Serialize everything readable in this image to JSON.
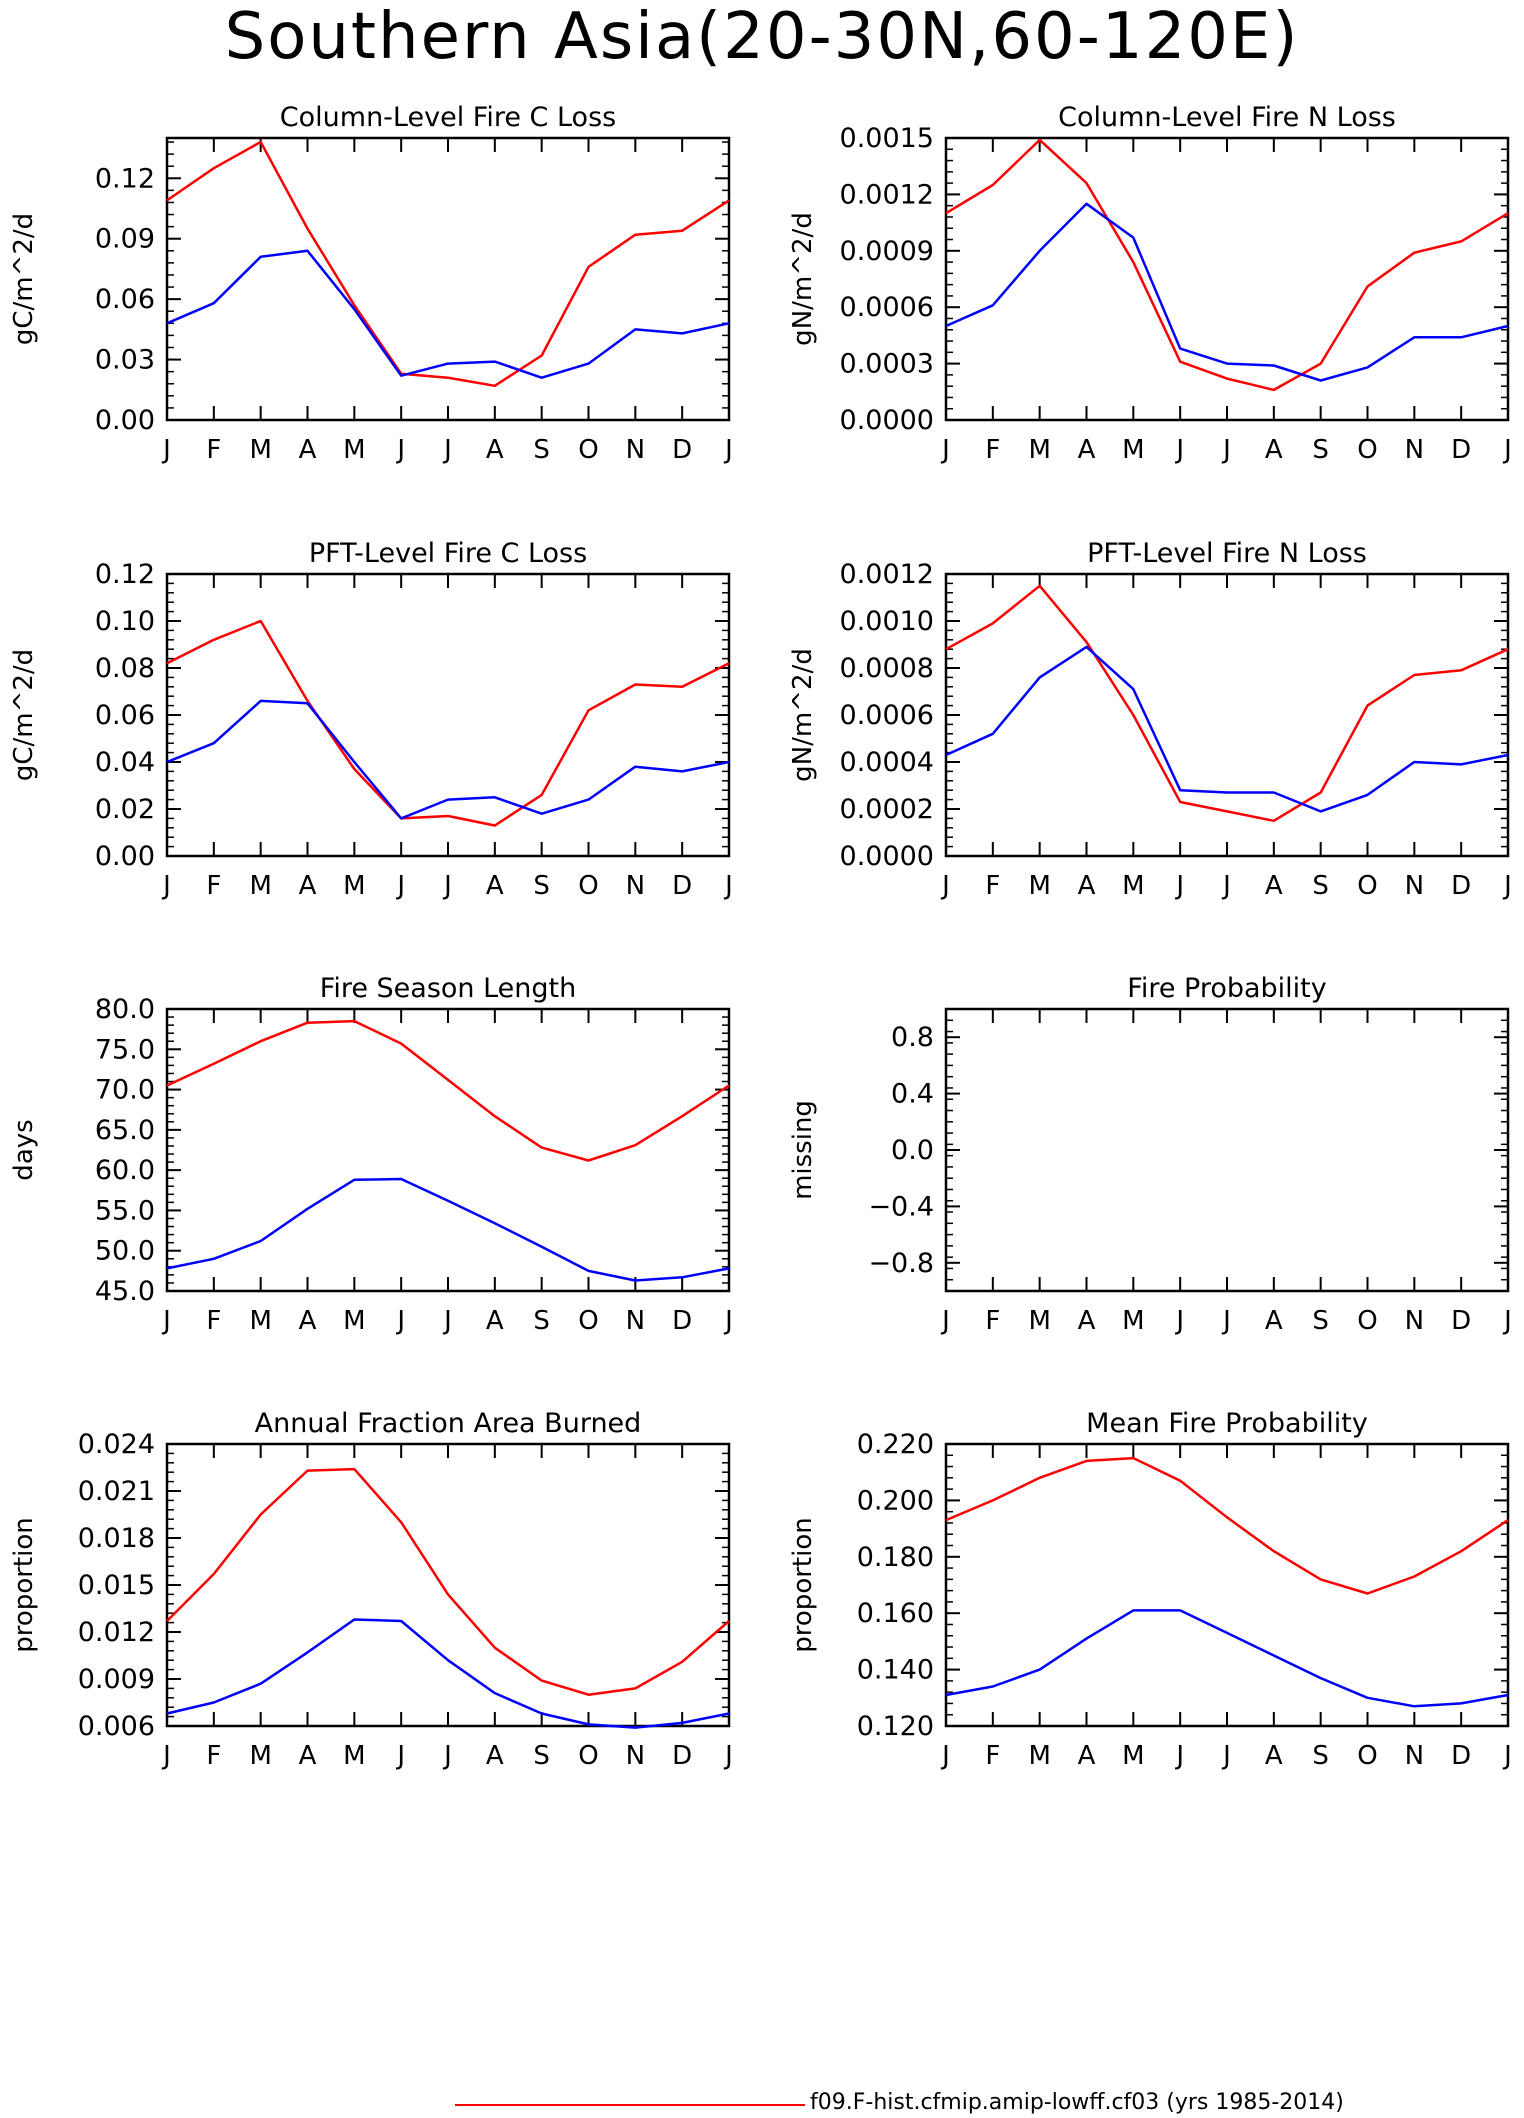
{
  "page_title": "Southern Asia(20-30N,60-120E)",
  "legend": {
    "label": "f09.F-hist.cfmip.amip-lowff.cf03 (yrs 1985-2014)",
    "color": "#ff0000"
  },
  "colors": {
    "series_red": "#ff0000",
    "series_blue": "#0000ff"
  },
  "chart_data": [
    {
      "type": "line",
      "title": "Column-Level Fire C Loss",
      "ylabel": "gC/m^2/d",
      "categories": [
        "J",
        "F",
        "M",
        "A",
        "M",
        "J",
        "J",
        "A",
        "S",
        "O",
        "N",
        "D",
        "J"
      ],
      "ylim": [
        0,
        0.14
      ],
      "yticks": [
        "0.00",
        "0.03",
        "0.06",
        "0.09",
        "0.12"
      ],
      "series": [
        {
          "color": "#ff0000",
          "values": [
            0.109,
            0.125,
            0.138,
            0.095,
            0.057,
            0.023,
            0.021,
            0.017,
            0.032,
            0.076,
            0.092,
            0.094,
            0.109
          ]
        },
        {
          "color": "#0000ff",
          "values": [
            0.048,
            0.058,
            0.081,
            0.084,
            0.055,
            0.022,
            0.028,
            0.029,
            0.021,
            0.028,
            0.045,
            0.043,
            0.048
          ]
        }
      ]
    },
    {
      "type": "line",
      "title": "Column-Level Fire N Loss",
      "ylabel": "gN/m^2/d",
      "categories": [
        "J",
        "F",
        "M",
        "A",
        "M",
        "J",
        "J",
        "A",
        "S",
        "O",
        "N",
        "D",
        "J"
      ],
      "ylim": [
        0,
        0.0015
      ],
      "yticks": [
        "0.0000",
        "0.0003",
        "0.0006",
        "0.0009",
        "0.0012",
        "0.0015"
      ],
      "series": [
        {
          "color": "#ff0000",
          "values": [
            0.0011,
            0.00125,
            0.00149,
            0.00126,
            0.00084,
            0.00031,
            0.00022,
            0.00016,
            0.0003,
            0.00071,
            0.00089,
            0.00095,
            0.0011
          ]
        },
        {
          "color": "#0000ff",
          "values": [
            0.0005,
            0.00061,
            0.0009,
            0.00115,
            0.00097,
            0.00038,
            0.0003,
            0.00029,
            0.00021,
            0.00028,
            0.00044,
            0.00044,
            0.0005
          ]
        }
      ]
    },
    {
      "type": "line",
      "title": "PFT-Level Fire C Loss",
      "ylabel": "gC/m^2/d",
      "categories": [
        "J",
        "F",
        "M",
        "A",
        "M",
        "J",
        "J",
        "A",
        "S",
        "O",
        "N",
        "D",
        "J"
      ],
      "ylim": [
        0,
        0.12
      ],
      "yticks": [
        "0.00",
        "0.02",
        "0.04",
        "0.06",
        "0.08",
        "0.10",
        "0.12"
      ],
      "series": [
        {
          "color": "#ff0000",
          "values": [
            0.082,
            0.092,
            0.1,
            0.066,
            0.037,
            0.016,
            0.017,
            0.013,
            0.026,
            0.062,
            0.073,
            0.072,
            0.082
          ]
        },
        {
          "color": "#0000ff",
          "values": [
            0.04,
            0.048,
            0.066,
            0.065,
            0.04,
            0.016,
            0.024,
            0.025,
            0.018,
            0.024,
            0.038,
            0.036,
            0.04
          ]
        }
      ]
    },
    {
      "type": "line",
      "title": "PFT-Level Fire N Loss",
      "ylabel": "gN/m^2/d",
      "categories": [
        "J",
        "F",
        "M",
        "A",
        "M",
        "J",
        "J",
        "A",
        "S",
        "O",
        "N",
        "D",
        "J"
      ],
      "ylim": [
        0,
        0.0012
      ],
      "yticks": [
        "0.0000",
        "0.0002",
        "0.0004",
        "0.0006",
        "0.0008",
        "0.0010",
        "0.0012"
      ],
      "series": [
        {
          "color": "#ff0000",
          "values": [
            0.00088,
            0.00099,
            0.00115,
            0.00091,
            0.0006,
            0.00023,
            0.00019,
            0.00015,
            0.00027,
            0.00064,
            0.00077,
            0.00079,
            0.00088
          ]
        },
        {
          "color": "#0000ff",
          "values": [
            0.00043,
            0.00052,
            0.00076,
            0.00089,
            0.00071,
            0.00028,
            0.00027,
            0.00027,
            0.00019,
            0.00026,
            0.0004,
            0.00039,
            0.00043
          ]
        }
      ]
    },
    {
      "type": "line",
      "title": "Fire Season Length",
      "ylabel": "days",
      "categories": [
        "J",
        "F",
        "M",
        "A",
        "M",
        "J",
        "J",
        "A",
        "S",
        "O",
        "N",
        "D",
        "J"
      ],
      "ylim": [
        45,
        80
      ],
      "yticks": [
        "45.0",
        "50.0",
        "55.0",
        "60.0",
        "65.0",
        "70.0",
        "75.0",
        "80.0"
      ],
      "series": [
        {
          "color": "#ff0000",
          "values": [
            70.5,
            73.2,
            76.0,
            78.3,
            78.5,
            75.7,
            71.2,
            66.7,
            62.8,
            61.2,
            63.1,
            66.7,
            70.5
          ]
        },
        {
          "color": "#0000ff",
          "values": [
            47.8,
            49.0,
            51.2,
            55.2,
            58.8,
            58.9,
            56.2,
            53.4,
            50.5,
            47.5,
            46.3,
            46.7,
            47.8
          ]
        }
      ]
    },
    {
      "type": "line",
      "title": "Fire Probability",
      "ylabel": "missing",
      "categories": [
        "J",
        "F",
        "M",
        "A",
        "M",
        "J",
        "J",
        "A",
        "S",
        "O",
        "N",
        "D",
        "J"
      ],
      "ylim": [
        -1,
        1
      ],
      "yticks": [
        "-0.8",
        "-0.4",
        "0.0",
        "0.4",
        "0.8"
      ],
      "series": []
    },
    {
      "type": "line",
      "title": "Annual Fraction Area Burned",
      "ylabel": "proportion",
      "categories": [
        "J",
        "F",
        "M",
        "A",
        "M",
        "J",
        "J",
        "A",
        "S",
        "O",
        "N",
        "D",
        "J"
      ],
      "ylim": [
        0.006,
        0.024
      ],
      "yticks": [
        "0.006",
        "0.009",
        "0.012",
        "0.015",
        "0.018",
        "0.021",
        "0.024"
      ],
      "series": [
        {
          "color": "#ff0000",
          "values": [
            0.0127,
            0.0157,
            0.0195,
            0.0223,
            0.0224,
            0.019,
            0.0144,
            0.011,
            0.0089,
            0.008,
            0.0084,
            0.0101,
            0.0127
          ]
        },
        {
          "color": "#0000ff",
          "values": [
            0.0068,
            0.0075,
            0.0087,
            0.0107,
            0.0128,
            0.0127,
            0.0102,
            0.0081,
            0.0068,
            0.0061,
            0.0059,
            0.0062,
            0.0068
          ]
        }
      ]
    },
    {
      "type": "line",
      "title": "Mean Fire Probability",
      "ylabel": "proportion",
      "categories": [
        "J",
        "F",
        "M",
        "A",
        "M",
        "J",
        "J",
        "A",
        "S",
        "O",
        "N",
        "D",
        "J"
      ],
      "ylim": [
        0.12,
        0.22
      ],
      "yticks": [
        "0.120",
        "0.140",
        "0.160",
        "0.180",
        "0.200",
        "0.220"
      ],
      "series": [
        {
          "color": "#ff0000",
          "values": [
            0.193,
            0.2,
            0.208,
            0.214,
            0.215,
            0.207,
            0.194,
            0.182,
            0.172,
            0.167,
            0.173,
            0.182,
            0.193
          ]
        },
        {
          "color": "#0000ff",
          "values": [
            0.131,
            0.134,
            0.14,
            0.151,
            0.161,
            0.161,
            0.153,
            0.145,
            0.137,
            0.13,
            0.127,
            0.128,
            0.131
          ]
        }
      ]
    }
  ]
}
